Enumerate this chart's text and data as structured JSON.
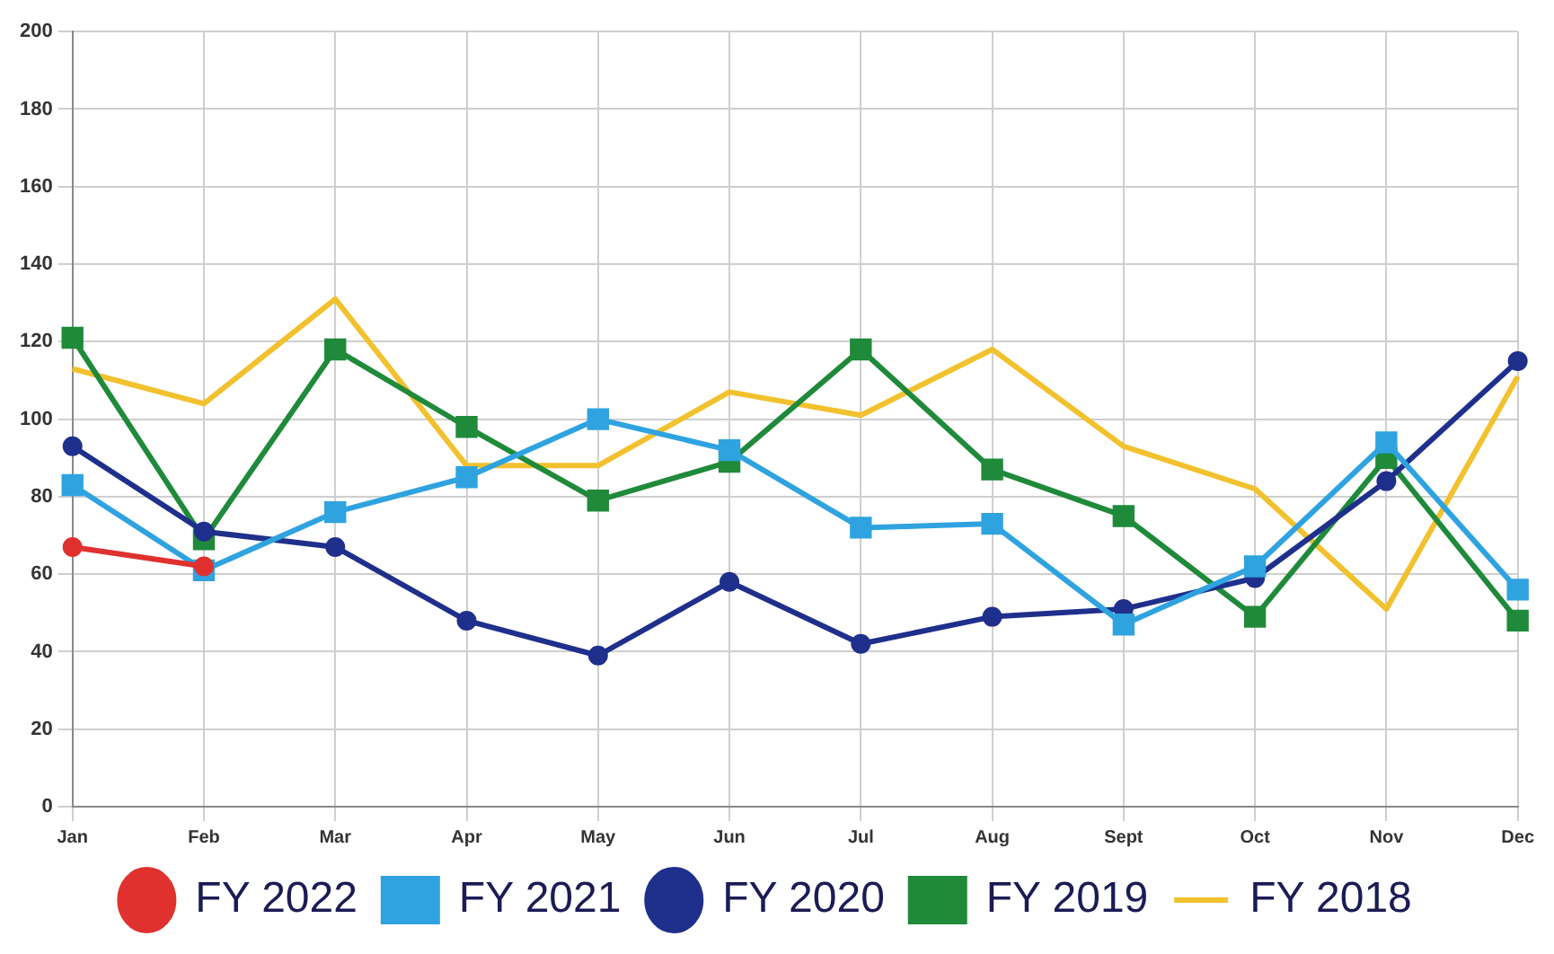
{
  "chart_data": {
    "type": "line",
    "categories": [
      "Jan",
      "Feb",
      "Mar",
      "Apr",
      "May",
      "Jun",
      "Jul",
      "Aug",
      "Sept",
      "Oct",
      "Nov",
      "Dec"
    ],
    "series": [
      {
        "name": "FY 2022",
        "color": "#e0312f",
        "marker": "circle",
        "values": [
          67,
          62,
          null,
          null,
          null,
          null,
          null,
          null,
          null,
          null,
          null,
          null
        ]
      },
      {
        "name": "FY 2021",
        "color": "#2fa3e0",
        "marker": "square",
        "values": [
          83,
          61,
          76,
          85,
          100,
          92,
          72,
          73,
          47,
          62,
          94,
          56
        ]
      },
      {
        "name": "FY 2020",
        "color": "#1f2f8c",
        "marker": "circle",
        "values": [
          93,
          71,
          67,
          48,
          39,
          58,
          42,
          49,
          51,
          59,
          84,
          115
        ]
      },
      {
        "name": "FY 2019",
        "color": "#1f8a3a",
        "marker": "square",
        "values": [
          121,
          69,
          118,
          98,
          79,
          89,
          118,
          87,
          75,
          49,
          90,
          48
        ]
      },
      {
        "name": "FY 2018",
        "color": "#f2c12e",
        "marker": "none",
        "values": [
          113,
          104,
          131,
          88,
          88,
          107,
          101,
          118,
          93,
          82,
          51,
          111
        ]
      }
    ],
    "ylim": [
      0,
      200
    ],
    "yticks": [
      0,
      20,
      40,
      60,
      80,
      100,
      120,
      140,
      160,
      180,
      200
    ],
    "grid": true,
    "legend": "bottom",
    "line_style": "solid"
  }
}
